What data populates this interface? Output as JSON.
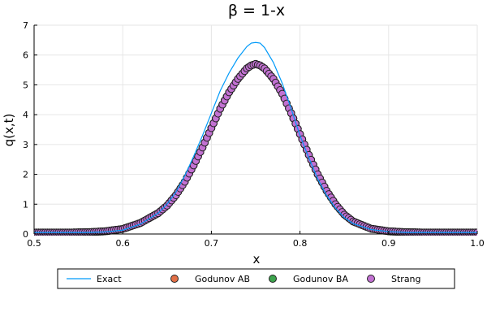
{
  "chart_data": {
    "type": "line",
    "title": "β = 1-x",
    "xlabel": "x",
    "ylabel": "q(x,t)",
    "xlim": [
      0.5,
      1.0
    ],
    "ylim": [
      0,
      7
    ],
    "xticks": [
      "0.5",
      "0.6",
      "0.7",
      "0.8",
      "0.9",
      "1.0"
    ],
    "yticks": [
      "0",
      "1",
      "2",
      "3",
      "4",
      "5",
      "6",
      "7"
    ],
    "grid": true,
    "legend_position": "bottom",
    "x": [
      0.5,
      0.52,
      0.54,
      0.56,
      0.58,
      0.6,
      0.62,
      0.64,
      0.65,
      0.66,
      0.67,
      0.68,
      0.69,
      0.7,
      0.71,
      0.72,
      0.73,
      0.74,
      0.745,
      0.75,
      0.755,
      0.76,
      0.77,
      0.78,
      0.79,
      0.8,
      0.81,
      0.82,
      0.83,
      0.84,
      0.85,
      0.86,
      0.88,
      0.9,
      0.92,
      0.94,
      0.96,
      0.98,
      1.0
    ],
    "series": [
      {
        "name": "Exact",
        "style": "line",
        "color": "#009af9",
        "values": [
          0.05,
          0.05,
          0.05,
          0.05,
          0.07,
          0.13,
          0.33,
          0.7,
          1.0,
          1.4,
          1.95,
          2.6,
          3.3,
          4.05,
          4.8,
          5.4,
          5.9,
          6.28,
          6.4,
          6.42,
          6.4,
          6.25,
          5.75,
          5.05,
          4.2,
          3.3,
          2.55,
          1.85,
          1.3,
          0.87,
          0.55,
          0.35,
          0.15,
          0.08,
          0.05,
          0.05,
          0.05,
          0.05,
          0.05
        ]
      },
      {
        "name": "Godunov AB",
        "style": "markers",
        "color": "#e26f46",
        "values": [
          0.05,
          0.05,
          0.05,
          0.06,
          0.09,
          0.17,
          0.37,
          0.7,
          0.95,
          1.3,
          1.75,
          2.3,
          2.9,
          3.55,
          4.2,
          4.75,
          5.2,
          5.55,
          5.65,
          5.7,
          5.65,
          5.55,
          5.2,
          4.7,
          4.05,
          3.35,
          2.65,
          2.0,
          1.45,
          1.0,
          0.65,
          0.42,
          0.18,
          0.09,
          0.06,
          0.05,
          0.05,
          0.05,
          0.05
        ]
      },
      {
        "name": "Godunov BA",
        "style": "markers",
        "color": "#3da44d",
        "values": [
          0.05,
          0.05,
          0.05,
          0.06,
          0.09,
          0.17,
          0.37,
          0.7,
          0.95,
          1.3,
          1.75,
          2.3,
          2.9,
          3.55,
          4.2,
          4.75,
          5.2,
          5.55,
          5.65,
          5.7,
          5.65,
          5.55,
          5.2,
          4.7,
          4.05,
          3.35,
          2.65,
          2.0,
          1.45,
          1.0,
          0.65,
          0.42,
          0.18,
          0.09,
          0.06,
          0.05,
          0.05,
          0.05,
          0.05
        ]
      },
      {
        "name": "Strang",
        "style": "markers",
        "color": "#c271d2",
        "values": [
          0.05,
          0.05,
          0.05,
          0.06,
          0.09,
          0.17,
          0.37,
          0.7,
          0.95,
          1.3,
          1.75,
          2.3,
          2.9,
          3.55,
          4.2,
          4.75,
          5.2,
          5.55,
          5.65,
          5.7,
          5.65,
          5.55,
          5.2,
          4.7,
          4.05,
          3.35,
          2.65,
          2.0,
          1.45,
          1.0,
          0.65,
          0.42,
          0.18,
          0.09,
          0.06,
          0.05,
          0.05,
          0.05,
          0.05
        ]
      }
    ]
  }
}
